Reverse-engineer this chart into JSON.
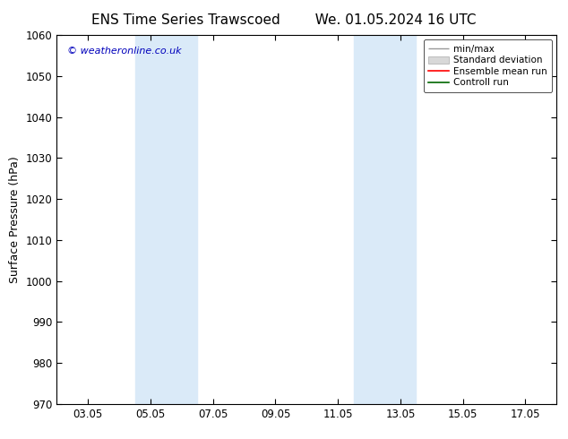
{
  "title_left": "ENS Time Series Trawscoed",
  "title_right": "We. 01.05.2024 16 UTC",
  "ylabel": "Surface Pressure (hPa)",
  "ylim": [
    970,
    1060
  ],
  "yticks": [
    970,
    980,
    990,
    1000,
    1010,
    1020,
    1030,
    1040,
    1050,
    1060
  ],
  "xtick_labels": [
    "03.05",
    "05.05",
    "07.05",
    "09.05",
    "11.05",
    "13.05",
    "15.05",
    "17.05"
  ],
  "xtick_positions": [
    2,
    4,
    6,
    8,
    10,
    12,
    14,
    16
  ],
  "xlim": [
    1,
    17
  ],
  "shaded_bands": [
    {
      "x_start": 3.5,
      "x_end": 5.5
    },
    {
      "x_start": 10.5,
      "x_end": 12.5
    }
  ],
  "band_color": "#daeaf8",
  "watermark": "© weatheronline.co.uk",
  "watermark_color": "#0000bb",
  "legend_labels": [
    "min/max",
    "Standard deviation",
    "Ensemble mean run",
    "Controll run"
  ],
  "legend_colors_lines": [
    "#aaaaaa",
    "#cccccc",
    "#ff0000",
    "#008000"
  ],
  "bg_color": "#ffffff",
  "plot_bg_color": "#ffffff",
  "title_fontsize": 11,
  "axis_label_fontsize": 9,
  "tick_fontsize": 8.5,
  "legend_fontsize": 7.5
}
